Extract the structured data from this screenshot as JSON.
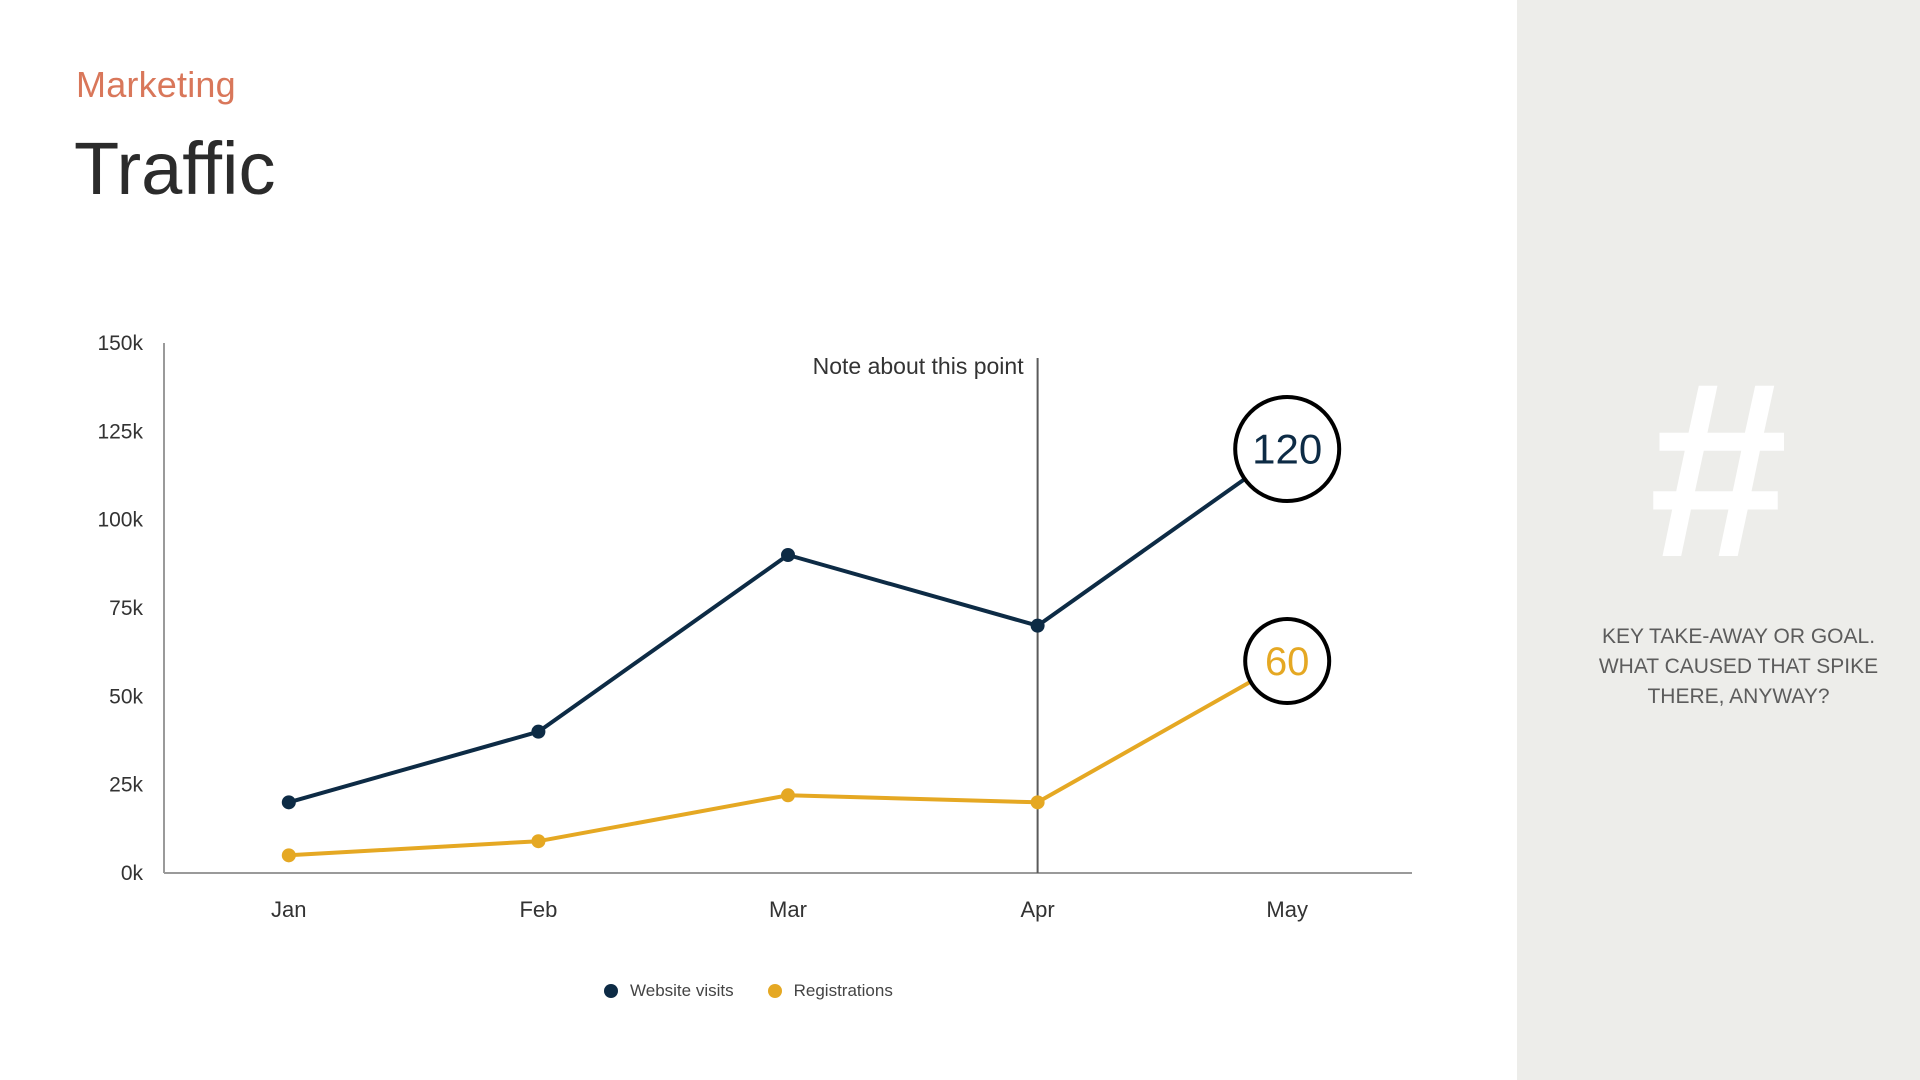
{
  "header": {
    "eyebrow": "Marketing",
    "title": "Traffic"
  },
  "side_panel": {
    "icon": "hash-icon",
    "symbol": "#",
    "takeaway": "KEY  TAKE-AWAY OR GOAL.\nWHAT CAUSED THAT SPIKE\nTHERE, ANYWAY?"
  },
  "colors": {
    "accent": "#d9775a",
    "series_visits": "#0d2b45",
    "series_registrations": "#e5a823",
    "panel": "#ededea"
  },
  "chart_data": {
    "type": "line",
    "categories": [
      "Jan",
      "Feb",
      "Mar",
      "Apr",
      "May"
    ],
    "y_ticks": [
      "0k",
      "25k",
      "50k",
      "75k",
      "100k",
      "125k",
      "150k"
    ],
    "ylim": [
      0,
      150
    ],
    "grid": false,
    "legend_position": "bottom",
    "series": [
      {
        "name": "Website visits",
        "values": [
          20,
          40,
          90,
          70,
          120
        ],
        "color": "#0d2b45"
      },
      {
        "name": "Registrations",
        "values": [
          5,
          9,
          22,
          20,
          60
        ],
        "color": "#e5a823"
      }
    ],
    "annotations": {
      "note_text": "Note about this point",
      "note_category": "Apr",
      "callouts": [
        {
          "series": 0,
          "index": 4,
          "label": "120"
        },
        {
          "series": 1,
          "index": 4,
          "label": "60"
        }
      ]
    }
  }
}
